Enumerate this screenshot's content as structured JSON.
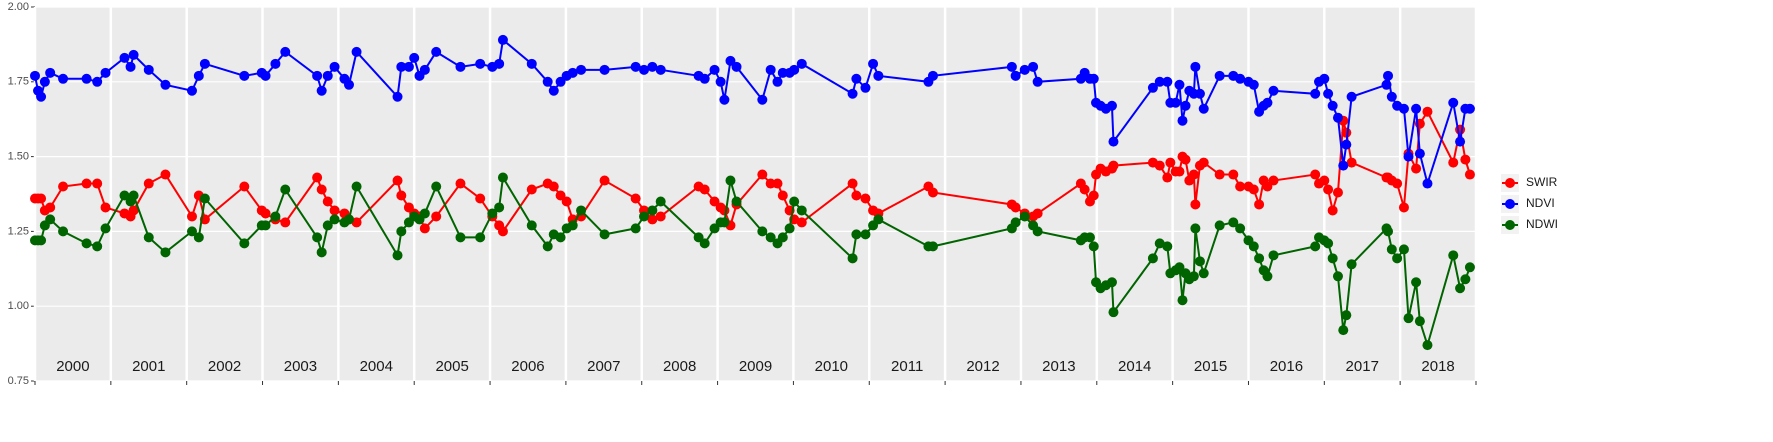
{
  "chart_data": {
    "type": "line",
    "x": [
      2000.0,
      2000.04,
      2000.08,
      2000.13,
      2000.2,
      2000.37,
      2000.68,
      2000.82,
      2000.93,
      2001.18,
      2001.26,
      2001.3,
      2001.5,
      2001.72,
      2002.07,
      2002.16,
      2002.24,
      2002.76,
      2002.99,
      2003.04,
      2003.17,
      2003.3,
      2003.72,
      2003.78,
      2003.86,
      2003.95,
      2004.08,
      2004.14,
      2004.24,
      2004.78,
      2004.83,
      2004.93,
      2005.0,
      2005.07,
      2005.14,
      2005.29,
      2005.61,
      2005.87,
      2006.03,
      2006.12,
      2006.17,
      2006.55,
      2006.76,
      2006.84,
      2006.93,
      2007.01,
      2007.09,
      2007.2,
      2007.51,
      2007.92,
      2008.03,
      2008.14,
      2008.25,
      2008.75,
      2008.83,
      2008.96,
      2009.04,
      2009.09,
      2009.17,
      2009.25,
      2009.59,
      2009.7,
      2009.79,
      2009.86,
      2009.95,
      2010.01,
      2010.11,
      2010.78,
      2010.83,
      2010.95,
      2011.05,
      2011.12,
      2011.78,
      2011.84,
      2012.88,
      2012.93,
      2013.05,
      2013.16,
      2013.22,
      2013.79,
      2013.84,
      2013.91,
      2013.96,
      2013.99,
      2014.05,
      2014.12,
      2014.2,
      2014.22,
      2014.74,
      2014.83,
      2014.93,
      2014.97,
      2015.04,
      2015.09,
      2015.13,
      2015.17,
      2015.22,
      2015.28,
      2015.3,
      2015.36,
      2015.41,
      2015.62,
      2015.8,
      2015.89,
      2016.0,
      2016.07,
      2016.14,
      2016.2,
      2016.25,
      2016.33,
      2016.88,
      2016.93,
      2017.0,
      2017.05,
      2017.11,
      2017.18,
      2017.25,
      2017.29,
      2017.36,
      2017.82,
      2017.84,
      2017.89,
      2017.96,
      2018.05,
      2018.11,
      2018.21,
      2018.26,
      2018.36,
      2018.7,
      2018.79,
      2018.86,
      2018.92
    ],
    "series": [
      {
        "name": "SWIR",
        "color": "#ff0000",
        "values": [
          1.36,
          1.36,
          1.36,
          1.32,
          1.33,
          1.4,
          1.41,
          1.41,
          1.33,
          1.31,
          1.3,
          1.32,
          1.41,
          1.44,
          1.3,
          1.37,
          1.29,
          1.4,
          1.32,
          1.31,
          1.29,
          1.28,
          1.43,
          1.39,
          1.35,
          1.32,
          1.31,
          1.29,
          1.28,
          1.42,
          1.37,
          1.33,
          1.31,
          1.3,
          1.26,
          1.3,
          1.41,
          1.36,
          1.3,
          1.27,
          1.25,
          1.39,
          1.41,
          1.4,
          1.37,
          1.35,
          1.29,
          1.3,
          1.42,
          1.36,
          1.32,
          1.29,
          1.3,
          1.4,
          1.39,
          1.35,
          1.33,
          1.32,
          1.27,
          1.34,
          1.44,
          1.41,
          1.41,
          1.37,
          1.32,
          1.29,
          1.28,
          1.41,
          1.37,
          1.36,
          1.32,
          1.31,
          1.4,
          1.38,
          1.34,
          1.33,
          1.31,
          1.3,
          1.31,
          1.41,
          1.39,
          1.35,
          1.37,
          1.44,
          1.46,
          1.45,
          1.46,
          1.47,
          1.48,
          1.47,
          1.43,
          1.48,
          1.45,
          1.45,
          1.5,
          1.49,
          1.42,
          1.44,
          1.34,
          1.47,
          1.48,
          1.44,
          1.44,
          1.4,
          1.4,
          1.39,
          1.34,
          1.42,
          1.4,
          1.42,
          1.44,
          1.41,
          1.42,
          1.39,
          1.32,
          1.38,
          1.62,
          1.58,
          1.48,
          1.43,
          1.43,
          1.42,
          1.41,
          1.33,
          1.51,
          1.46,
          1.61,
          1.65,
          1.48,
          1.59,
          1.49,
          1.44
        ]
      },
      {
        "name": "NDVI",
        "color": "#0000ff",
        "values": [
          1.77,
          1.72,
          1.7,
          1.75,
          1.78,
          1.76,
          1.76,
          1.75,
          1.78,
          1.83,
          1.8,
          1.84,
          1.79,
          1.74,
          1.72,
          1.77,
          1.81,
          1.77,
          1.78,
          1.77,
          1.81,
          1.85,
          1.77,
          1.72,
          1.77,
          1.8,
          1.76,
          1.74,
          1.85,
          1.7,
          1.8,
          1.8,
          1.83,
          1.77,
          1.79,
          1.85,
          1.8,
          1.81,
          1.8,
          1.81,
          1.89,
          1.81,
          1.75,
          1.72,
          1.75,
          1.77,
          1.78,
          1.79,
          1.79,
          1.8,
          1.79,
          1.8,
          1.79,
          1.77,
          1.76,
          1.79,
          1.75,
          1.69,
          1.82,
          1.8,
          1.69,
          1.79,
          1.75,
          1.78,
          1.78,
          1.79,
          1.81,
          1.71,
          1.76,
          1.73,
          1.81,
          1.77,
          1.75,
          1.77,
          1.8,
          1.77,
          1.79,
          1.8,
          1.75,
          1.76,
          1.78,
          1.76,
          1.76,
          1.68,
          1.67,
          1.66,
          1.67,
          1.55,
          1.73,
          1.75,
          1.75,
          1.68,
          1.68,
          1.74,
          1.62,
          1.67,
          1.72,
          1.71,
          1.8,
          1.71,
          1.66,
          1.77,
          1.77,
          1.76,
          1.75,
          1.74,
          1.65,
          1.67,
          1.68,
          1.72,
          1.71,
          1.75,
          1.76,
          1.71,
          1.67,
          1.63,
          1.47,
          1.54,
          1.7,
          1.74,
          1.77,
          1.7,
          1.67,
          1.66,
          1.5,
          1.66,
          1.51,
          1.41,
          1.68,
          1.55,
          1.66,
          1.66
        ]
      },
      {
        "name": "NDWI",
        "color": "#006400",
        "values": [
          1.22,
          1.22,
          1.22,
          1.27,
          1.29,
          1.25,
          1.21,
          1.2,
          1.26,
          1.37,
          1.35,
          1.37,
          1.23,
          1.18,
          1.25,
          1.23,
          1.36,
          1.21,
          1.27,
          1.27,
          1.3,
          1.39,
          1.23,
          1.18,
          1.27,
          1.29,
          1.28,
          1.29,
          1.4,
          1.17,
          1.25,
          1.28,
          1.3,
          1.29,
          1.31,
          1.4,
          1.23,
          1.23,
          1.31,
          1.33,
          1.43,
          1.27,
          1.2,
          1.24,
          1.23,
          1.26,
          1.27,
          1.32,
          1.24,
          1.26,
          1.3,
          1.32,
          1.35,
          1.23,
          1.21,
          1.26,
          1.28,
          1.28,
          1.42,
          1.35,
          1.25,
          1.23,
          1.21,
          1.23,
          1.26,
          1.35,
          1.32,
          1.16,
          1.24,
          1.24,
          1.27,
          1.29,
          1.2,
          1.2,
          1.26,
          1.28,
          1.3,
          1.27,
          1.25,
          1.22,
          1.23,
          1.23,
          1.2,
          1.08,
          1.06,
          1.07,
          1.08,
          0.98,
          1.16,
          1.21,
          1.2,
          1.11,
          1.12,
          1.13,
          1.02,
          1.11,
          1.09,
          1.1,
          1.26,
          1.15,
          1.11,
          1.27,
          1.28,
          1.26,
          1.22,
          1.2,
          1.16,
          1.12,
          1.1,
          1.17,
          1.2,
          1.23,
          1.22,
          1.21,
          1.16,
          1.1,
          0.92,
          0.97,
          1.14,
          1.26,
          1.25,
          1.19,
          1.16,
          1.19,
          0.96,
          1.08,
          0.95,
          0.87,
          1.17,
          1.06,
          1.09,
          1.13
        ]
      }
    ],
    "xlim": [
      2000,
      2019
    ],
    "xticks": [
      2000,
      2001,
      2002,
      2003,
      2004,
      2005,
      2006,
      2007,
      2008,
      2009,
      2010,
      2011,
      2012,
      2013,
      2014,
      2015,
      2016,
      2017,
      2018,
      2019
    ],
    "year_labels": [
      2000,
      2001,
      2002,
      2003,
      2004,
      2005,
      2006,
      2007,
      2008,
      2009,
      2010,
      2011,
      2012,
      2013,
      2014,
      2015,
      2016,
      2017,
      2018
    ],
    "ylim": [
      0.75,
      2.0
    ],
    "yticks": [
      {
        "value": 0.75,
        "label": "0.75"
      },
      {
        "value": 1.0,
        "label": "1.00"
      },
      {
        "value": 1.25,
        "label": "1.25"
      },
      {
        "value": 1.5,
        "label": "1.50"
      },
      {
        "value": 1.75,
        "label": "1.75"
      },
      {
        "value": 2.0,
        "label": "2.00"
      }
    ],
    "grid": true,
    "legend": "right"
  }
}
